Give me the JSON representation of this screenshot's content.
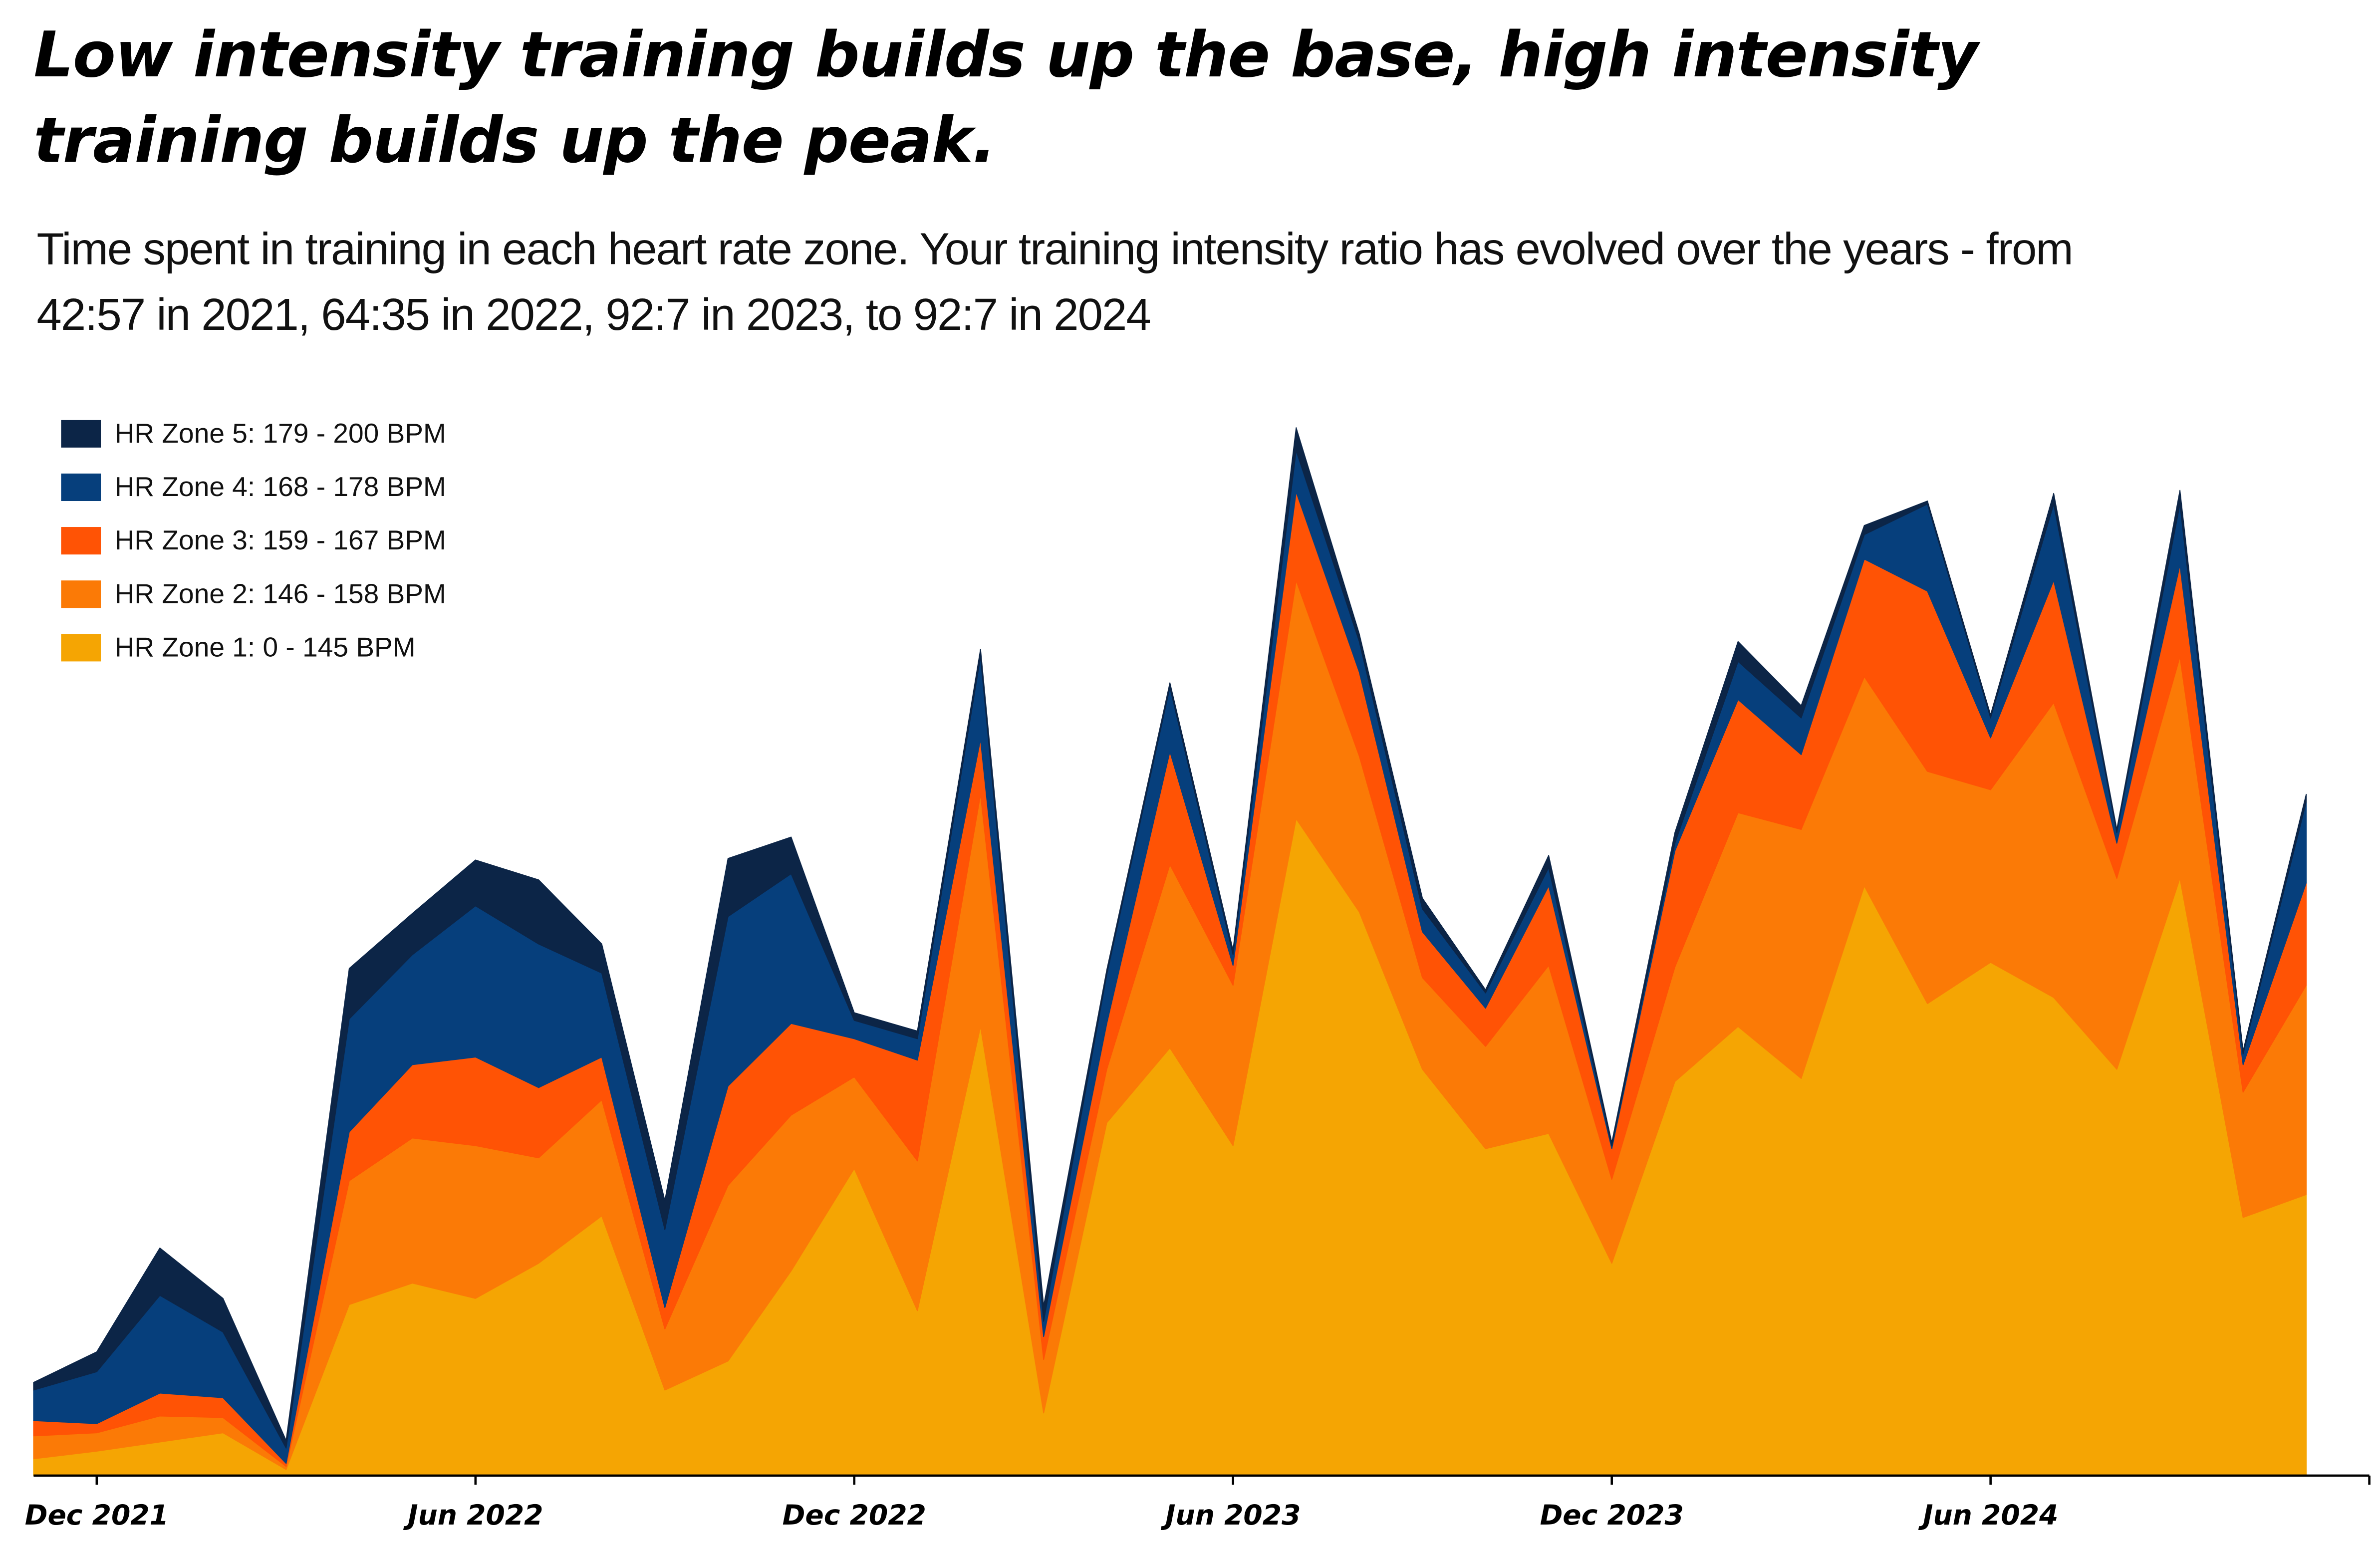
{
  "chart_data": {
    "type": "stacked-area",
    "title": "Low intensity training builds up the base, high intensity training builds up the peak.",
    "subtitle": "Time spent in training in each heart rate zone. Your training intensity ratio has evolved over the years - from 42:57 in 2021, 64:35 in 2022, 92:7 in 2023, to 92:7 in 2024",
    "x": [
      "2021-11",
      "2021-12",
      "2022-01",
      "2022-02",
      "2022-03",
      "2022-04",
      "2022-05",
      "2022-06",
      "2022-07",
      "2022-08",
      "2022-09",
      "2022-10",
      "2022-11",
      "2022-12",
      "2023-01",
      "2023-02",
      "2023-03",
      "2023-04",
      "2023-05",
      "2023-06",
      "2023-07",
      "2023-08",
      "2023-09",
      "2023-10",
      "2023-11",
      "2023-12",
      "2024-01",
      "2024-02",
      "2024-03",
      "2024-04",
      "2024-05",
      "2024-06",
      "2024-07",
      "2024-08",
      "2024-09",
      "2024-10",
      "2024-11"
    ],
    "xlim": [
      "2021-11",
      "2024-12"
    ],
    "xticks": [
      {
        "value": "2021-12",
        "label": "Dec 2021"
      },
      {
        "value": "2022-06",
        "label": "Jun 2022"
      },
      {
        "value": "2022-12",
        "label": "Dec 2022"
      },
      {
        "value": "2023-06",
        "label": "Jun 2023"
      },
      {
        "value": "2023-12",
        "label": "Dec 2023"
      },
      {
        "value": "2024-06",
        "label": "Jun 2024"
      }
    ],
    "ylim": [
      0,
      700
    ],
    "legend": "upper left",
    "series": [
      {
        "name": "HR Zone 1: 0 - 145 BPM",
        "color": "#f5a503",
        "values": [
          11,
          16,
          22,
          28,
          4,
          112,
          126,
          116,
          139,
          170,
          56,
          75,
          134,
          201,
          108,
          294,
          41,
          231,
          280,
          216,
          430,
          369,
          266,
          214,
          224,
          139,
          258,
          294,
          260,
          386,
          309,
          336,
          313,
          266,
          391,
          169,
          184
        ]
      },
      {
        "name": "HR Zone 2: 146 - 158 BPM",
        "color": "#fb7a06",
        "values": [
          15,
          12,
          17,
          10,
          2,
          81,
          95,
          100,
          69,
          76,
          40,
          115,
          102,
          60,
          98,
          152,
          35,
          35,
          120,
          105,
          156,
          102,
          60,
          67,
          110,
          55,
          75,
          140,
          163,
          137,
          152,
          113,
          193,
          125,
          145,
          82,
          137
        ]
      },
      {
        "name": "HR Zone 3: 159 - 167 BPM",
        "color": "#ff5305",
        "values": [
          10,
          6,
          15,
          13,
          2,
          32,
          48,
          58,
          46,
          28,
          14,
          65,
          60,
          25,
          66,
          36,
          15,
          30,
          74,
          13,
          58,
          55,
          30,
          25,
          52,
          20,
          76,
          74,
          49,
          77,
          118,
          34,
          80,
          23,
          60,
          18,
          67
        ]
      },
      {
        "name": "HR Zone 4: 168 - 178 BPM",
        "color": "#063f7c",
        "values": [
          20,
          34,
          64,
          43,
          10,
          74,
          72,
          99,
          94,
          55,
          51,
          111,
          98,
          12,
          14,
          54,
          10,
          32,
          42,
          7,
          27,
          20,
          15,
          10,
          12,
          2,
          5,
          25,
          24,
          16,
          57,
          13,
          50,
          7,
          40,
          7,
          53
        ]
      },
      {
        "name": "HR Zone 5: 179 - 200 BPM",
        "color": "#0c2547",
        "values": [
          5,
          13,
          31,
          22,
          5,
          33,
          27,
          30,
          42,
          19,
          19,
          38,
          24,
          5,
          5,
          5,
          10,
          3,
          3,
          3,
          15,
          5,
          7,
          2,
          8,
          2,
          7,
          13,
          8,
          6,
          2,
          2,
          7,
          2,
          9,
          2,
          5
        ]
      }
    ]
  }
}
